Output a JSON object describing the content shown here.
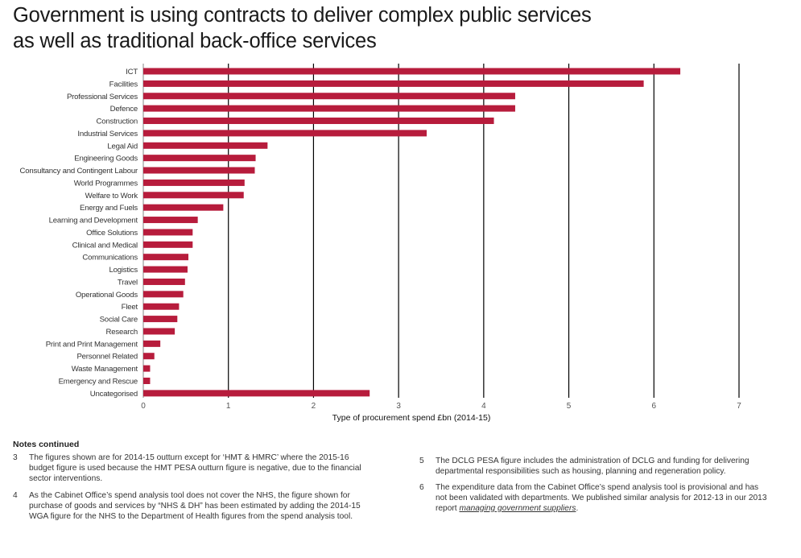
{
  "page": {
    "title_line1": "Government is using contracts to deliver complex public services",
    "title_line2": "as well as traditional back-office services",
    "bar_color": "#B71C3C"
  },
  "chart_data": {
    "type": "bar",
    "orientation": "horizontal",
    "title": "Government is using contracts to deliver complex public services as well as traditional back-office services",
    "xlabel": "Type of procurement spend £bn (2014-15)",
    "ylabel": "",
    "xlim": [
      0,
      7
    ],
    "xticks": [
      0,
      1,
      2,
      3,
      4,
      5,
      6,
      7
    ],
    "grid": true,
    "legend": "none",
    "categories": [
      "ICT",
      "Facilities",
      "Professional Services",
      "Defence",
      "Construction",
      "Industrial Services",
      "Legal Aid",
      "Engineering Goods",
      "Consultancy and Contingent Labour",
      "World Programmes",
      "Welfare to Work",
      "Energy and Fuels",
      "Learning and Development",
      "Office Solutions",
      "Clinical and Medical",
      "Communications",
      "Logistics",
      "Travel",
      "Operational Goods",
      "Fleet",
      "Social Care",
      "Research",
      "Print and Print Management",
      "Personnel Related",
      "Waste Management",
      "Emergency and Rescue",
      "Uncategorised"
    ],
    "values": [
      6.31,
      5.88,
      4.37,
      4.37,
      4.12,
      3.33,
      1.46,
      1.32,
      1.31,
      1.19,
      1.18,
      0.94,
      0.64,
      0.58,
      0.58,
      0.53,
      0.52,
      0.49,
      0.47,
      0.42,
      0.4,
      0.37,
      0.2,
      0.13,
      0.08,
      0.08,
      2.66
    ]
  },
  "notes": {
    "heading": "Notes continued",
    "items": [
      {
        "num": "3",
        "lines": [
          "The figures shown are for 2014-15 outturn except for ‘HMT & HMRC’ where the 2015-16",
          "budget figure is used because the HMT PESA outturn figure is negative, due to the financial",
          "sector interventions."
        ]
      },
      {
        "num": "4",
        "lines": [
          "As the Cabinet Office’s spend analysis tool does not cover the NHS, the figure shown for",
          "purchase of goods and services by “NHS & DH” has been estimated by adding the 2014-15",
          "WGA figure for the NHS to the  Department of Health figures from the spend analysis tool."
        ]
      },
      {
        "num": "5",
        "lines": [
          "The DCLG PESA figure includes the administration of DCLG and funding for delivering",
          "departmental responsibilities such as housing, planning and regeneration policy."
        ]
      },
      {
        "num": "6",
        "lines": [
          "The  expenditure data from the Cabinet Office’s spend analysis tool is provisional and has",
          "not been validated with departments. We published similar analysis  for 2012-13  in our 2013"
        ],
        "last_prefix": "report ",
        "link_text": "managing government suppliers",
        "last_suffix": "."
      }
    ]
  }
}
